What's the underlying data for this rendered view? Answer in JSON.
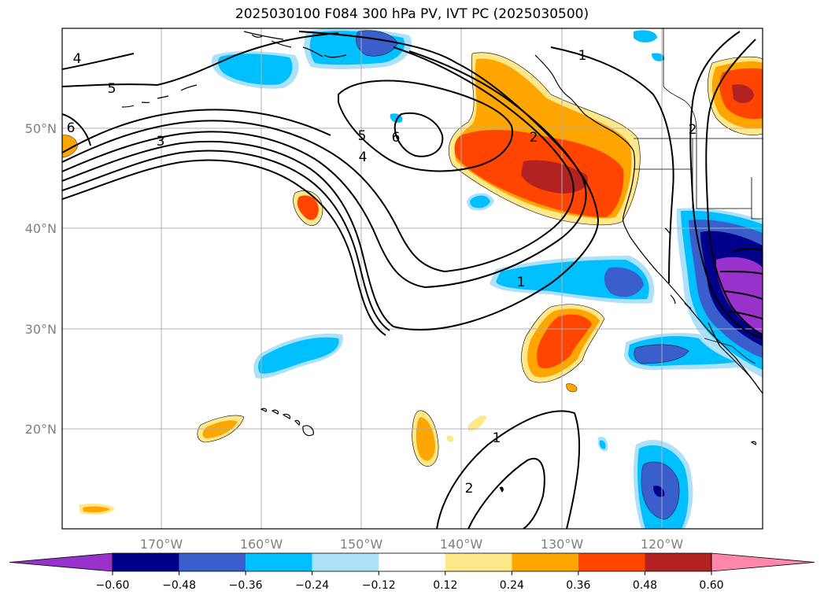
{
  "title": "2025030100 F084 300 hPa PV, IVT PC (2025030500)",
  "map": {
    "lat_labels": [
      "50°N",
      "40°N",
      "30°N",
      "20°N"
    ],
    "lon_labels": [
      "170°W",
      "160°W",
      "150°W",
      "140°W",
      "130°W",
      "120°W"
    ],
    "contour_labels": [
      "1",
      "2",
      "3",
      "4",
      "5",
      "6",
      "1",
      "2",
      "1",
      "2",
      "5",
      "6",
      "4"
    ]
  },
  "colorbar": {
    "ticks": [
      "−0.60",
      "−0.48",
      "−0.36",
      "−0.24",
      "−0.12",
      "0.12",
      "0.24",
      "0.36",
      "0.48",
      "0.60"
    ],
    "colors": [
      "#9932CC",
      "#00008B",
      "#3A5FCD",
      "#00BFFF",
      "#ADE1FA",
      "#FFFFFF",
      "#FFE88A",
      "#FFA500",
      "#FF4500",
      "#B22222",
      "#FF88AA"
    ]
  }
}
